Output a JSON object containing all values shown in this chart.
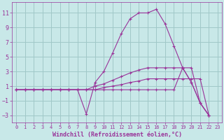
{
  "xlabel": "Windchill (Refroidissement éolien,°C)",
  "ylabel": "",
  "background_color": "#c8e8e8",
  "grid_color": "#a0c8c8",
  "line_color": "#993399",
  "xlim": [
    -0.5,
    23.5
  ],
  "ylim": [
    -4,
    12.5
  ],
  "xticks": [
    0,
    1,
    2,
    3,
    4,
    5,
    6,
    7,
    8,
    9,
    10,
    11,
    12,
    13,
    14,
    15,
    16,
    17,
    18,
    19,
    20,
    21,
    22,
    23
  ],
  "yticks": [
    -3,
    -1,
    1,
    3,
    5,
    7,
    9,
    11
  ],
  "series": [
    [
      0.5,
      0.5,
      0.5,
      0.5,
      0.5,
      0.5,
      0.5,
      0.5,
      0.5,
      0.5,
      0.5,
      0.5,
      0.5,
      0.5,
      0.5,
      0.5,
      0.5,
      0.5,
      0.5,
      3.5,
      1.5,
      -1.3,
      -3.0
    ],
    [
      0.5,
      0.5,
      0.5,
      0.5,
      0.5,
      0.5,
      0.5,
      0.5,
      -2.8,
      1.5,
      3.0,
      5.5,
      8.2,
      10.2,
      11.0,
      11.0,
      11.5,
      9.5,
      6.5,
      3.5,
      1.5,
      -1.3,
      -3.0
    ],
    [
      0.5,
      0.5,
      0.5,
      0.5,
      0.5,
      0.5,
      0.5,
      0.5,
      0.5,
      1.0,
      1.3,
      1.8,
      2.3,
      2.8,
      3.2,
      3.5,
      3.5,
      3.5,
      3.5,
      3.5,
      3.5,
      -1.3,
      -3.0
    ],
    [
      0.5,
      0.5,
      0.5,
      0.5,
      0.5,
      0.5,
      0.5,
      0.5,
      0.5,
      0.5,
      0.8,
      1.0,
      1.2,
      1.5,
      1.7,
      2.0,
      2.0,
      2.0,
      2.0,
      2.0,
      2.0,
      2.0,
      -3.0
    ]
  ],
  "x_data": [
    0,
    1,
    2,
    3,
    4,
    5,
    6,
    7,
    8,
    9,
    10,
    11,
    12,
    13,
    14,
    15,
    16,
    17,
    18,
    19,
    20,
    21,
    22
  ],
  "tick_fontsize": 5.5,
  "xlabel_fontsize": 6.0
}
